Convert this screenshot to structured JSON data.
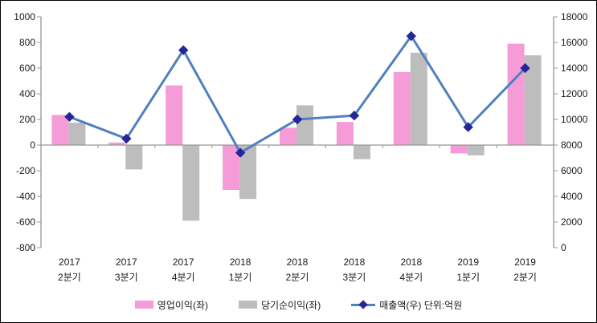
{
  "chart_data": {
    "type": "combo-bar-line",
    "title": "",
    "categories": [
      [
        "2017",
        "2분기"
      ],
      [
        "2017",
        "3분기"
      ],
      [
        "2017",
        "4분기"
      ],
      [
        "2018",
        "1분기"
      ],
      [
        "2018",
        "2분기"
      ],
      [
        "2018",
        "3분기"
      ],
      [
        "2018",
        "4분기"
      ],
      [
        "2019",
        "1분기"
      ],
      [
        "2019",
        "2분기"
      ]
    ],
    "series": [
      {
        "name": "영업이익(좌)",
        "type": "bar",
        "axis": "left",
        "color": "#F59BD7",
        "values": [
          235,
          20,
          465,
          -350,
          135,
          180,
          570,
          -65,
          790
        ]
      },
      {
        "name": "당기순이익(좌)",
        "type": "bar",
        "axis": "left",
        "color": "#BDBDBD",
        "values": [
          175,
          -190,
          -590,
          -420,
          310,
          -110,
          720,
          -80,
          700
        ]
      },
      {
        "name": "매출액(우) 단위:억원",
        "type": "line",
        "axis": "right",
        "color": "#4F81BD",
        "marker_color": "#26269B",
        "values": [
          10200,
          8500,
          15400,
          7400,
          10000,
          10300,
          16500,
          9400,
          14000
        ]
      }
    ],
    "left_axis": {
      "min": -800,
      "max": 1000,
      "step": 200,
      "ticks": [
        1000,
        800,
        600,
        400,
        200,
        0,
        -200,
        -400,
        -600,
        -800
      ]
    },
    "right_axis": {
      "min": 0,
      "max": 18000,
      "step": 2000,
      "ticks": [
        18000,
        16000,
        14000,
        12000,
        10000,
        8000,
        6000,
        4000,
        2000,
        0
      ]
    },
    "grid": false,
    "legend_position": "bottom",
    "axis_line_color": "#969696"
  }
}
